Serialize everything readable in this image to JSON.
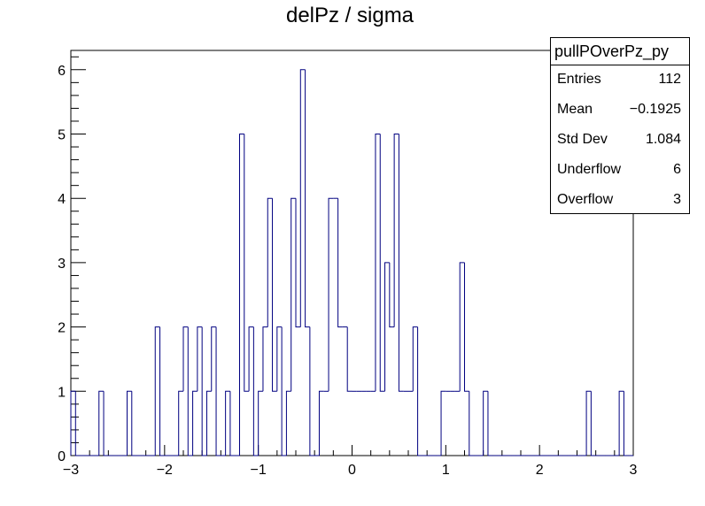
{
  "chart_data": {
    "type": "bar",
    "title": "delPz / sigma",
    "xlabel": "",
    "ylabel": "",
    "xlim": [
      -3,
      3
    ],
    "ylim": [
      0,
      6.3
    ],
    "bins": 120,
    "bin_width": 0.05,
    "x_tick_labels": [
      "−3",
      "−2",
      "−1",
      "0",
      "1",
      "2",
      "3"
    ],
    "y_tick_labels": [
      "0",
      "1",
      "2",
      "3",
      "4",
      "5",
      "6"
    ],
    "values": [
      1,
      0,
      0,
      0,
      0,
      0,
      1,
      0,
      0,
      0,
      0,
      0,
      1,
      0,
      0,
      0,
      0,
      0,
      2,
      0,
      0,
      0,
      0,
      1,
      2,
      0,
      1,
      2,
      0,
      1,
      2,
      0,
      0,
      1,
      0,
      0,
      5,
      1,
      2,
      0,
      1,
      2,
      4,
      1,
      2,
      0,
      1,
      4,
      2,
      6,
      2,
      0,
      0,
      1,
      1,
      4,
      4,
      2,
      2,
      1,
      1,
      1,
      1,
      1,
      1,
      5,
      1,
      3,
      2,
      5,
      1,
      1,
      1,
      2,
      0,
      0,
      0,
      0,
      0,
      1,
      1,
      1,
      1,
      3,
      1,
      0,
      0,
      0,
      1,
      0,
      0,
      0,
      0,
      0,
      0,
      0,
      0,
      0,
      0,
      0,
      0,
      0,
      0,
      0,
      0,
      0,
      0,
      0,
      0,
      0,
      1,
      0,
      0,
      0,
      0,
      0,
      0,
      1,
      0,
      0
    ]
  },
  "stats": {
    "name": "pullPOverPz_py",
    "entries_label": "Entries",
    "entries": "112",
    "mean_label": "Mean",
    "mean": "−0.1925",
    "stddev_label": "Std Dev",
    "stddev": "1.084",
    "underflow_label": "Underflow",
    "underflow": "6",
    "overflow_label": "Overflow",
    "overflow": "3"
  },
  "colors": {
    "histogram_line": "#000080",
    "axis": "#000000",
    "background": "#ffffff"
  }
}
